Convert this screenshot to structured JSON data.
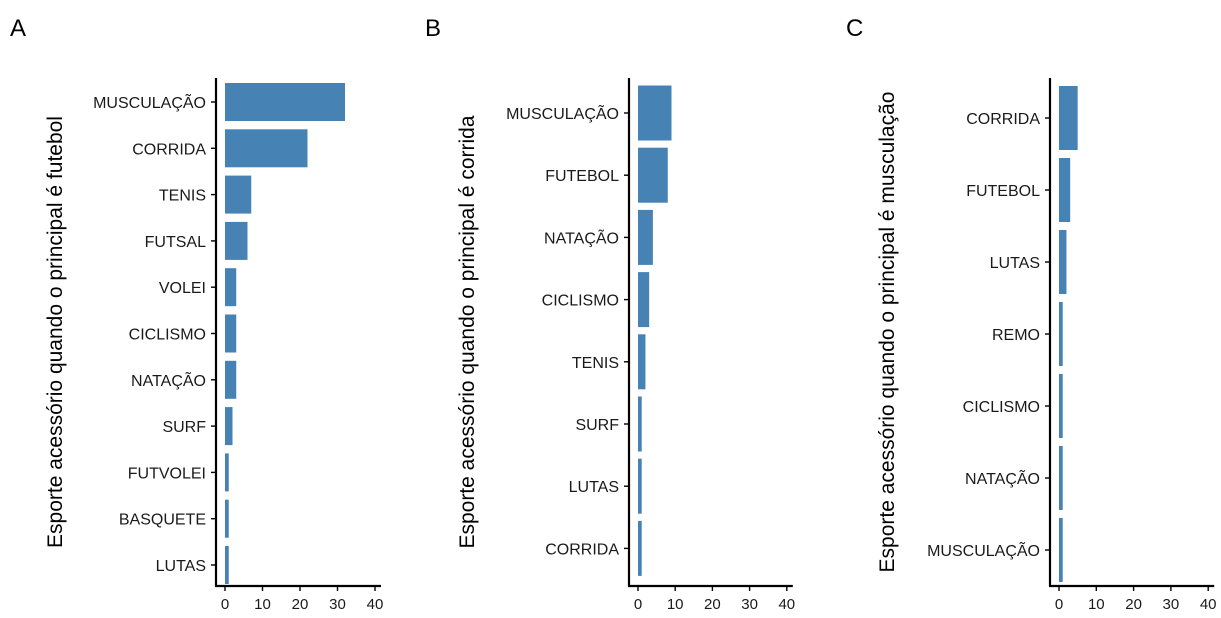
{
  "chart_data": [
    {
      "panel": "A",
      "type": "bar",
      "orientation": "horizontal",
      "ylabel": "Esporte acessório quando o principal é futebol",
      "xlabel": "",
      "categories": [
        "MUSCULAÇÃO",
        "CORRIDA",
        "TENIS",
        "FUTSAL",
        "VOLEI",
        "CICLISMO",
        "NATAÇÃO",
        "SURF",
        "FUTVOLEI",
        "BASQUETE",
        "LUTAS"
      ],
      "values": [
        32,
        22,
        7,
        6,
        3,
        3,
        3,
        2,
        1,
        1,
        1
      ],
      "xlim": [
        0,
        40
      ],
      "xticks": [
        0,
        10,
        20,
        30,
        40
      ],
      "bar_color": "#4682B4",
      "grid": false
    },
    {
      "panel": "B",
      "type": "bar",
      "orientation": "horizontal",
      "ylabel": "Esporte acessório quando o principal é corrida",
      "xlabel": "",
      "categories": [
        "MUSCULAÇÃO",
        "FUTEBOL",
        "NATAÇÃO",
        "CICLISMO",
        "TENIS",
        "SURF",
        "LUTAS",
        "CORRIDA"
      ],
      "values": [
        9,
        8,
        4,
        3,
        2,
        1,
        1,
        1
      ],
      "xlim": [
        0,
        40
      ],
      "xticks": [
        0,
        10,
        20,
        30,
        40
      ],
      "bar_color": "#4682B4",
      "grid": false
    },
    {
      "panel": "C",
      "type": "bar",
      "orientation": "horizontal",
      "ylabel": "Esporte acessório quando o principal é musculação",
      "xlabel": "",
      "categories": [
        "CORRIDA",
        "FUTEBOL",
        "LUTAS",
        "REMO",
        "CICLISMO",
        "NATAÇÃO",
        "MUSCULAÇÃO"
      ],
      "values": [
        5,
        3,
        2,
        1,
        1,
        1,
        1
      ],
      "xlim": [
        0,
        40
      ],
      "xticks": [
        0,
        10,
        20,
        30,
        40
      ],
      "bar_color": "#4682B4",
      "grid": false
    }
  ]
}
